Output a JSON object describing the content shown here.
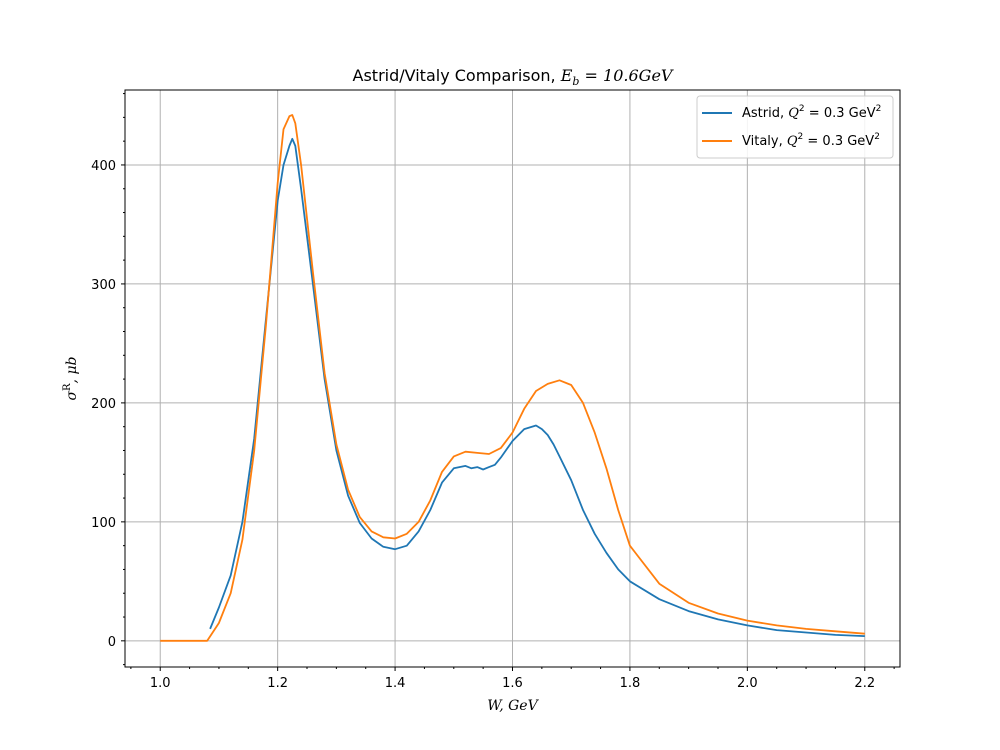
{
  "chart_data": {
    "type": "line",
    "title": "Astrid/Vitaly Comparison, E_b = 10.6GeV",
    "title_parts": {
      "prefix": "Astrid/Vitaly Comparison, ",
      "symbol": "E",
      "subscript": "b",
      "rest": " = 10.6GeV"
    },
    "xlabel": "W, GeV",
    "ylabel": "σ^R, μb",
    "ylabel_parts": {
      "symbol": "σ",
      "superscript": "R",
      "rest": ", μb"
    },
    "xlim": [
      0.94,
      2.26
    ],
    "ylim": [
      -22,
      463
    ],
    "x_ticks": [
      1.0,
      1.2,
      1.4,
      1.6,
      1.8,
      2.0,
      2.2
    ],
    "x_tick_labels": [
      "1.0",
      "1.2",
      "1.4",
      "1.6",
      "1.8",
      "2.0",
      "2.2"
    ],
    "y_ticks": [
      0,
      100,
      200,
      300,
      400
    ],
    "y_tick_labels": [
      "0",
      "100",
      "200",
      "300",
      "400"
    ],
    "grid": true,
    "legend_position": "top-right",
    "series": [
      {
        "name": "Astrid, Q^2 = 0.3 GeV^2",
        "name_parts": {
          "prefix": "Astrid, ",
          "symbol": "Q",
          "superscript": "2",
          "rest": " = 0.3 GeV",
          "unit_superscript": "2"
        },
        "color": "#1f77b4",
        "x": [
          1.085,
          1.1,
          1.12,
          1.14,
          1.16,
          1.18,
          1.2,
          1.21,
          1.22,
          1.225,
          1.23,
          1.24,
          1.26,
          1.28,
          1.3,
          1.32,
          1.34,
          1.36,
          1.38,
          1.4,
          1.42,
          1.44,
          1.46,
          1.48,
          1.5,
          1.52,
          1.53,
          1.54,
          1.55,
          1.56,
          1.57,
          1.58,
          1.6,
          1.62,
          1.64,
          1.65,
          1.66,
          1.67,
          1.68,
          1.7,
          1.72,
          1.74,
          1.76,
          1.78,
          1.8,
          1.85,
          1.9,
          1.95,
          2.0,
          2.05,
          2.1,
          2.15,
          2.2
        ],
        "y": [
          10,
          28,
          55,
          100,
          170,
          270,
          370,
          400,
          416,
          422,
          416,
          380,
          300,
          220,
          160,
          122,
          99,
          86,
          79,
          77,
          80,
          92,
          110,
          133,
          145,
          147,
          145,
          146,
          144,
          146,
          148,
          154,
          168,
          178,
          181,
          178,
          173,
          165,
          155,
          135,
          110,
          90,
          74,
          60,
          50,
          35,
          25,
          18,
          13,
          9,
          7,
          5,
          4
        ]
      },
      {
        "name": "Vitaly, Q^2 = 0.3 GeV^2",
        "name_parts": {
          "prefix": "Vitaly, ",
          "symbol": "Q",
          "superscript": "2",
          "rest": " = 0.3 GeV",
          "unit_superscript": "2"
        },
        "color": "#ff7f0e",
        "x": [
          1.0,
          1.05,
          1.08,
          1.1,
          1.12,
          1.14,
          1.16,
          1.18,
          1.2,
          1.21,
          1.22,
          1.225,
          1.23,
          1.24,
          1.26,
          1.28,
          1.3,
          1.32,
          1.34,
          1.36,
          1.38,
          1.4,
          1.42,
          1.44,
          1.46,
          1.48,
          1.5,
          1.52,
          1.54,
          1.56,
          1.58,
          1.6,
          1.62,
          1.64,
          1.66,
          1.68,
          1.7,
          1.72,
          1.74,
          1.76,
          1.78,
          1.8,
          1.85,
          1.9,
          1.95,
          2.0,
          2.05,
          2.1,
          2.15,
          2.2
        ],
        "y": [
          0,
          0,
          0,
          15,
          40,
          85,
          160,
          265,
          385,
          430,
          441,
          442,
          435,
          400,
          310,
          225,
          165,
          127,
          104,
          92,
          87,
          86,
          90,
          100,
          118,
          142,
          155,
          159,
          158,
          157,
          162,
          175,
          195,
          210,
          216,
          219,
          215,
          200,
          175,
          145,
          110,
          80,
          48,
          32,
          23,
          17,
          13,
          10,
          8,
          6
        ]
      }
    ]
  }
}
